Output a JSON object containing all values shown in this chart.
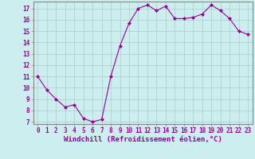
{
  "x": [
    0,
    1,
    2,
    3,
    4,
    5,
    6,
    7,
    8,
    9,
    10,
    11,
    12,
    13,
    14,
    15,
    16,
    17,
    18,
    19,
    20,
    21,
    22,
    23
  ],
  "y": [
    11.0,
    9.8,
    9.0,
    8.3,
    8.5,
    7.3,
    7.0,
    7.2,
    11.0,
    13.7,
    15.7,
    17.0,
    17.3,
    16.8,
    17.2,
    16.1,
    16.1,
    16.2,
    16.5,
    17.3,
    16.8,
    16.1,
    15.0,
    14.7
  ],
  "line_color": "#990099",
  "marker": "D",
  "marker_size": 2,
  "bg_color": "#cceeee",
  "grid_color": "#aacccc",
  "xlabel": "Windchill (Refroidissement éolien,°C)",
  "ylabel": "",
  "xlim": [
    -0.5,
    23.5
  ],
  "ylim": [
    6.8,
    17.6
  ],
  "yticks": [
    7,
    8,
    9,
    10,
    11,
    12,
    13,
    14,
    15,
    16,
    17
  ],
  "xticks": [
    0,
    1,
    2,
    3,
    4,
    5,
    6,
    7,
    8,
    9,
    10,
    11,
    12,
    13,
    14,
    15,
    16,
    17,
    18,
    19,
    20,
    21,
    22,
    23
  ],
  "tick_label_color": "#990099",
  "tick_label_size": 5.5,
  "xlabel_size": 6.5,
  "spine_color": "#888888",
  "linewidth": 0.8
}
